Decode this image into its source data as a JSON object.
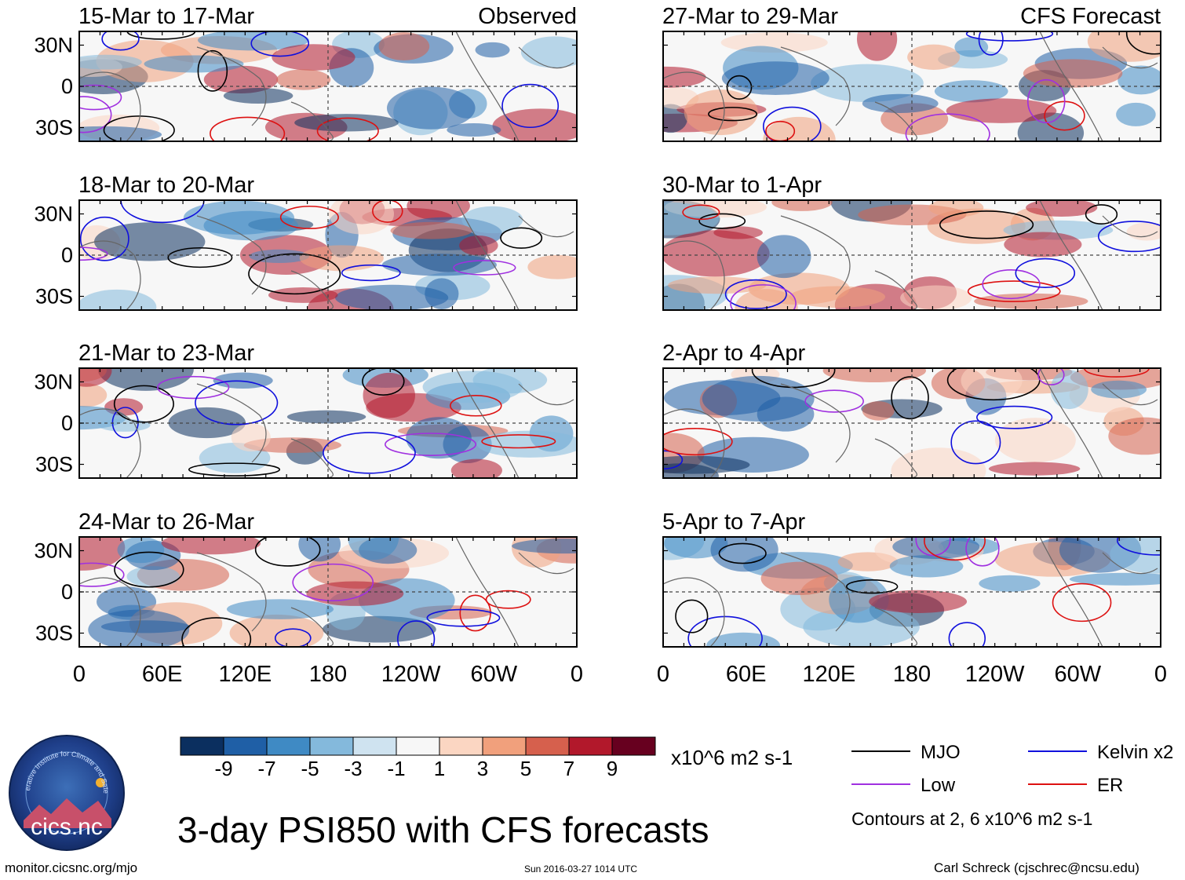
{
  "chart_data": {
    "type": "heatmap",
    "title": "3-day PSI850 with CFS forecasts",
    "variable": "PSI850",
    "units": "x10^6 m2 s-1",
    "contour_note": "Contours at 2, 6 x10^6 m2 s-1",
    "headers": {
      "left": "Observed",
      "right": "CFS Forecast"
    },
    "x_ticks": [
      "0",
      "60E",
      "120E",
      "180",
      "120W",
      "60W",
      "0"
    ],
    "y_ticks": [
      "30N",
      "0",
      "30S"
    ],
    "xlim": [
      0,
      360
    ],
    "ylim": [
      -40,
      40
    ],
    "panels": [
      {
        "id": "p1",
        "label": "15-Mar to 17-Mar",
        "column": "left",
        "source": "Observed"
      },
      {
        "id": "p2",
        "label": "18-Mar to 20-Mar",
        "column": "left",
        "source": "Observed"
      },
      {
        "id": "p3",
        "label": "21-Mar to 23-Mar",
        "column": "left",
        "source": "Observed"
      },
      {
        "id": "p4",
        "label": "24-Mar to 26-Mar",
        "column": "left",
        "source": "Observed"
      },
      {
        "id": "p5",
        "label": "27-Mar to 29-Mar",
        "column": "right",
        "source": "CFS Forecast"
      },
      {
        "id": "p6",
        "label": "30-Mar to 1-Apr",
        "column": "right",
        "source": "CFS Forecast"
      },
      {
        "id": "p7",
        "label": "2-Apr to 4-Apr",
        "column": "right",
        "source": "CFS Forecast"
      },
      {
        "id": "p8",
        "label": "5-Apr to 7-Apr",
        "column": "right",
        "source": "CFS Forecast"
      }
    ],
    "colorbar": {
      "labels": [
        "-9",
        "-7",
        "-5",
        "-3",
        "-1",
        "1",
        "3",
        "5",
        "7",
        "9"
      ],
      "colors": [
        "#0b2f5f",
        "#1f5fa6",
        "#3f8ac4",
        "#84b9dc",
        "#cfe3f0",
        "#f7f7f7",
        "#fbd6c2",
        "#f1a07c",
        "#d6604d",
        "#b2182b",
        "#67001f"
      ]
    },
    "legend": [
      {
        "name": "MJO",
        "color": "#000000"
      },
      {
        "name": "Kelvin x2",
        "color": "#1010dd"
      },
      {
        "name": "Low",
        "color": "#a030e0"
      },
      {
        "name": "ER",
        "color": "#dd1111"
      }
    ]
  },
  "footer": {
    "site": "monitor.cicsnc.org/mjo",
    "timestamp": "Sun 2016-03-27 1014 UTC",
    "author": "Carl Schreck (cjschrec@ncsu.edu)"
  },
  "logo": {
    "text": "cics.nc",
    "ring": "Cooperative Institute for Climate and Satellites"
  }
}
